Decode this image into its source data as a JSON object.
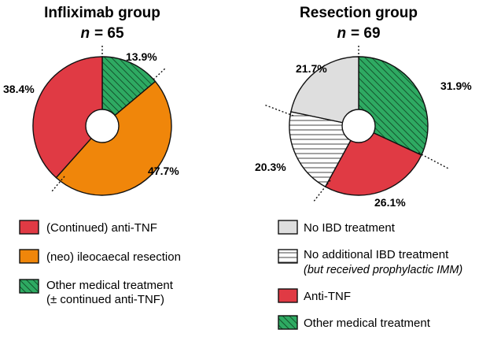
{
  "chart_data": [
    {
      "type": "pie",
      "title": "Infliximab group",
      "n_label": "n",
      "n_value": "= 65",
      "slices": [
        {
          "label": "Other medical treatment",
          "label_line2": "(± continued anti-TNF)",
          "value": 13.9,
          "pct_label": "13.9%",
          "color": "#2eaa62",
          "pattern": "diagonal"
        },
        {
          "label": "(neo) ileocaecal resection",
          "value": 47.7,
          "pct_label": "47.7%",
          "color": "#f0860a",
          "pattern": "none"
        },
        {
          "label": "(Continued) anti-TNF",
          "value": 38.4,
          "pct_label": "38.4%",
          "color": "#e03a44",
          "pattern": "none"
        }
      ],
      "legend": [
        "(Continued) anti-TNF",
        "(neo) ileocaecal resection",
        "Other medical treatment",
        "(± continued anti-TNF)"
      ]
    },
    {
      "type": "pie",
      "title": "Resection group",
      "n_label": "n",
      "n_value": "= 69",
      "slices": [
        {
          "label": "Other medical treatment",
          "value": 31.9,
          "pct_label": "31.9%",
          "color": "#2eaa62",
          "pattern": "diagonal"
        },
        {
          "label": "Anti-TNF",
          "value": 26.1,
          "pct_label": "26.1%",
          "color": "#e03a44",
          "pattern": "none"
        },
        {
          "label": "No additional IBD treatment",
          "label_line2": "(but received prophylactic IMM)",
          "value": 20.3,
          "pct_label": "20.3%",
          "color": "#ffffff",
          "pattern": "horizontal"
        },
        {
          "label": "No IBD treatment",
          "value": 21.7,
          "pct_label": "21.7%",
          "color": "#dedede",
          "pattern": "none"
        }
      ],
      "legend": [
        "No IBD treatment",
        "No additional IBD treatment",
        "(but received prophylactic IMM)",
        "Anti-TNF",
        "Other medical treatment"
      ]
    }
  ]
}
